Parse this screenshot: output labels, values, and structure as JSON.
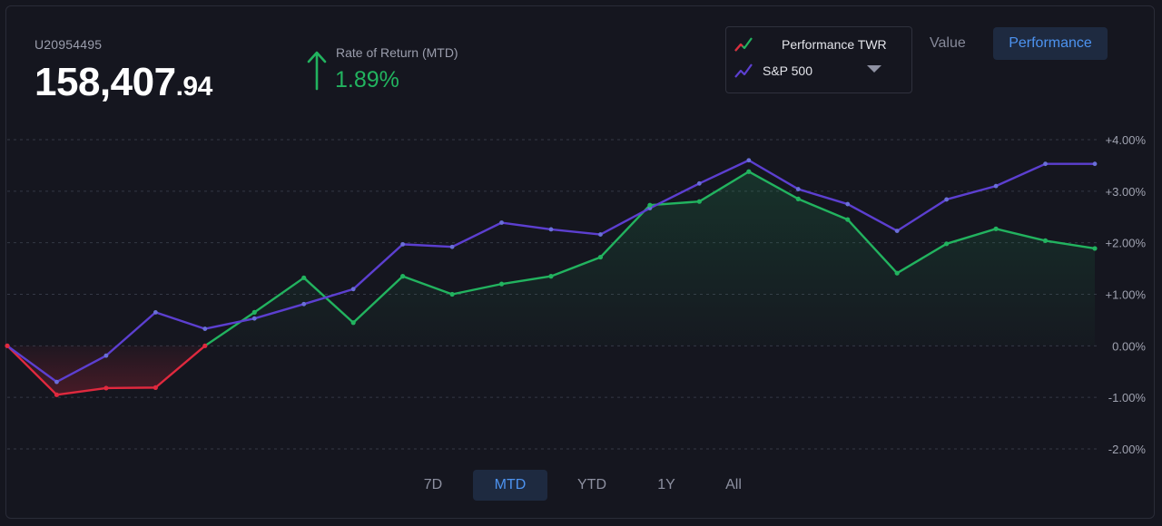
{
  "account": {
    "id": "U20954495",
    "balance_whole": "158,407",
    "balance_cents": ".94"
  },
  "rate_of_return": {
    "label": "Rate of Return (MTD)",
    "value": "1.89%",
    "direction": "up",
    "color": "#22b35f"
  },
  "legend": {
    "items": [
      {
        "label": "Performance TWR",
        "icon": "performance-line-icon"
      },
      {
        "label": "S&P 500",
        "icon": "benchmark-line-icon"
      }
    ],
    "dropdown_icon": "caret-down-icon"
  },
  "view_toggle": {
    "options": [
      "Value",
      "Performance"
    ],
    "selected": "Performance"
  },
  "periods": {
    "options": [
      "7D",
      "MTD",
      "YTD",
      "1Y",
      "All"
    ],
    "selected": "MTD"
  },
  "colors": {
    "positive": "#22b35f",
    "negative": "#e0293e",
    "benchmark": "#5c3fd0",
    "accent": "#4d93f0"
  },
  "chart_data": {
    "type": "line",
    "y_unit": "%",
    "ylim": [
      -2,
      4
    ],
    "y_ticks": [
      4,
      3,
      2,
      1,
      0,
      -1,
      -2
    ],
    "y_tick_labels": [
      "+4.00%",
      "+3.00%",
      "+2.00%",
      "+1.00%",
      "0.00%",
      "-1.00%",
      "-2.00%"
    ],
    "grid": true,
    "series": [
      {
        "name": "Performance TWR",
        "values": [
          0.0,
          -0.95,
          -0.82,
          -0.81,
          0.0,
          0.65,
          1.32,
          0.45,
          1.35,
          1.0,
          1.2,
          1.35,
          1.72,
          2.73,
          2.8,
          3.38,
          2.85,
          2.45,
          1.41,
          1.98,
          2.27,
          2.04,
          1.89
        ]
      },
      {
        "name": "S&P 500",
        "values": [
          0.0,
          -0.7,
          -0.19,
          0.65,
          0.33,
          0.53,
          0.81,
          1.1,
          1.97,
          1.92,
          2.39,
          2.26,
          2.16,
          2.67,
          3.15,
          3.6,
          3.04,
          2.75,
          2.23,
          2.84,
          3.1,
          3.53,
          3.53
        ]
      }
    ]
  }
}
